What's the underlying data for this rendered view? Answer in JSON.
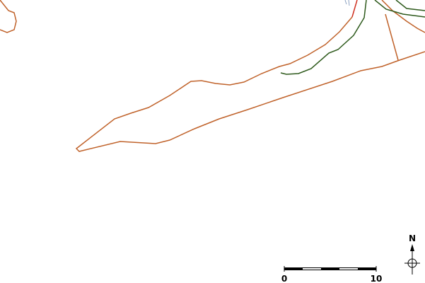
{
  "map": {
    "north_label": "N",
    "scale_labels": [
      "0",
      "10"
    ]
  }
}
